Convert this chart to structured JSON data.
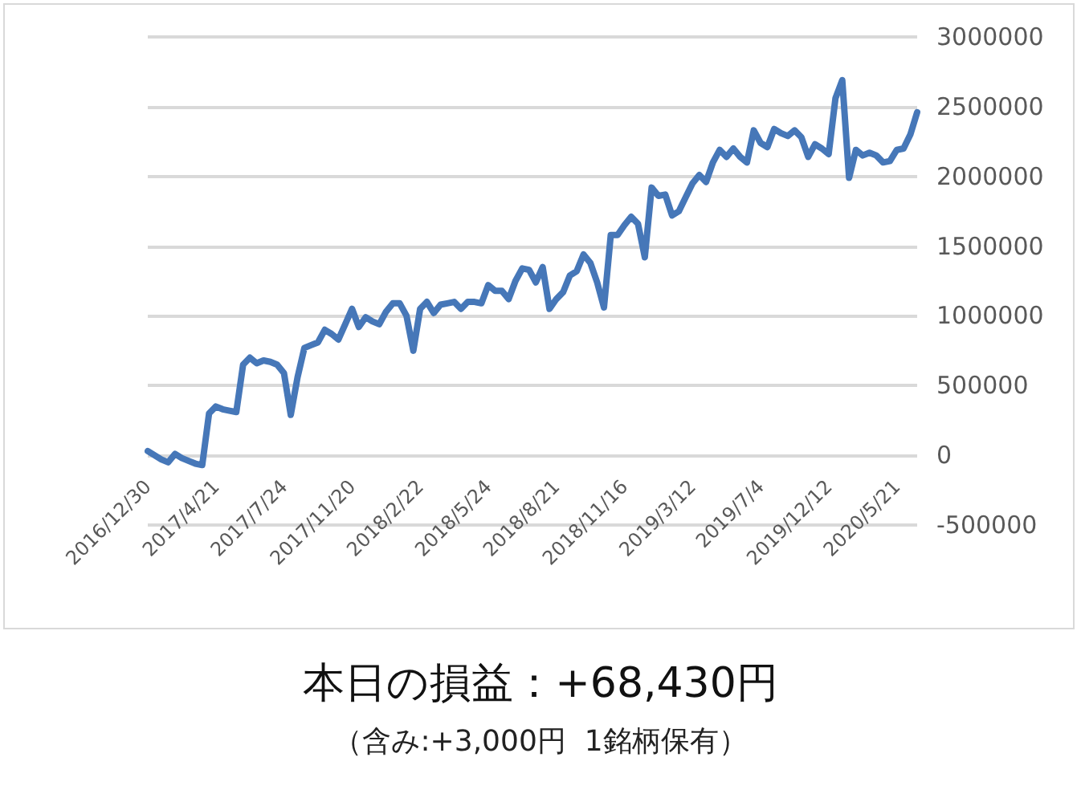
{
  "chart_data": {
    "type": "line",
    "title": "本日の損益：+68,430円",
    "subtitle": "（含み:+3,000円  1銘柄保有）",
    "categories": [
      "2016/12/30",
      null,
      null,
      null,
      null,
      null,
      null,
      null,
      null,
      null,
      "2017/4/21",
      null,
      null,
      null,
      null,
      null,
      null,
      null,
      null,
      null,
      "2017/7/24",
      null,
      null,
      null,
      null,
      null,
      null,
      null,
      null,
      null,
      "2017/11/20",
      null,
      null,
      null,
      null,
      null,
      null,
      null,
      null,
      null,
      "2018/2/22",
      null,
      null,
      null,
      null,
      null,
      null,
      null,
      null,
      null,
      "2018/5/24",
      null,
      null,
      null,
      null,
      null,
      null,
      null,
      null,
      null,
      "2018/8/21",
      null,
      null,
      null,
      null,
      null,
      null,
      null,
      null,
      null,
      "2018/11/16",
      null,
      null,
      null,
      null,
      null,
      null,
      null,
      null,
      null,
      "2019/3/12",
      null,
      null,
      null,
      null,
      null,
      null,
      null,
      null,
      null,
      "2019/7/4",
      null,
      null,
      null,
      null,
      null,
      null,
      null,
      null,
      null,
      "2019/12/12",
      null,
      null,
      null,
      null,
      null,
      null,
      null,
      null,
      null,
      "2020/5/21",
      null,
      null,
      null
    ],
    "series": [
      {
        "color": "#4677b8",
        "values": [
          30000,
          0,
          -30000,
          -50000,
          10000,
          -20000,
          -40000,
          -60000,
          -70000,
          300000,
          350000,
          330000,
          320000,
          310000,
          650000,
          700000,
          660000,
          680000,
          670000,
          650000,
          590000,
          290000,
          560000,
          770000,
          790000,
          810000,
          900000,
          870000,
          830000,
          940000,
          1050000,
          920000,
          990000,
          960000,
          940000,
          1030000,
          1090000,
          1090000,
          1000000,
          750000,
          1050000,
          1100000,
          1020000,
          1080000,
          1090000,
          1100000,
          1050000,
          1100000,
          1100000,
          1090000,
          1220000,
          1180000,
          1180000,
          1120000,
          1250000,
          1340000,
          1330000,
          1240000,
          1350000,
          1050000,
          1120000,
          1170000,
          1290000,
          1320000,
          1440000,
          1380000,
          1240000,
          1060000,
          1580000,
          1580000,
          1650000,
          1710000,
          1660000,
          1420000,
          1920000,
          1860000,
          1870000,
          1720000,
          1750000,
          1850000,
          1950000,
          2010000,
          1960000,
          2100000,
          2190000,
          2140000,
          2200000,
          2140000,
          2100000,
          2330000,
          2240000,
          2210000,
          2340000,
          2310000,
          2290000,
          2330000,
          2280000,
          2140000,
          2230000,
          2200000,
          2160000,
          2560000,
          2690000,
          1990000,
          2190000,
          2150000,
          2170000,
          2150000,
          2100000,
          2110000,
          2190000,
          2200000,
          2300000,
          2460000
        ]
      }
    ],
    "ylim": [
      -500000,
      3000000
    ],
    "yticks": [
      -500000,
      0,
      500000,
      1000000,
      1500000,
      2000000,
      2500000,
      3000000
    ],
    "grid": "y",
    "marker": "none",
    "line_style": "solid"
  }
}
